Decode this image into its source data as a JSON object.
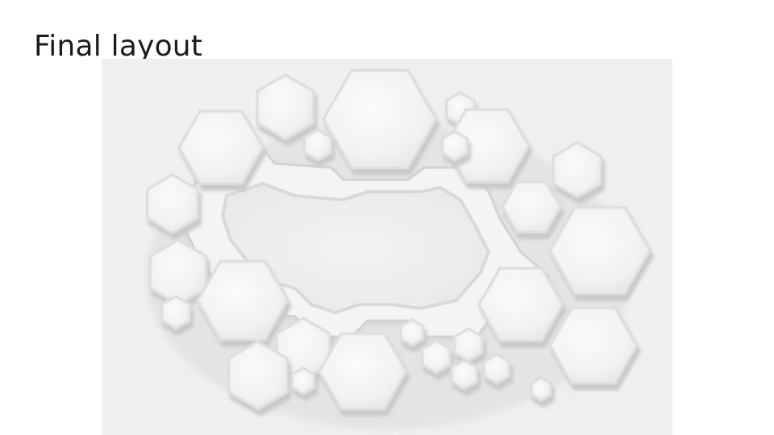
{
  "slide": {
    "title": "Final layout"
  },
  "figure": {
    "icon": "hexagon-layout-render-image",
    "colors": {
      "background": "#efefef",
      "surface": "#f7f7f7",
      "shadow": "#cfcfcf"
    }
  }
}
